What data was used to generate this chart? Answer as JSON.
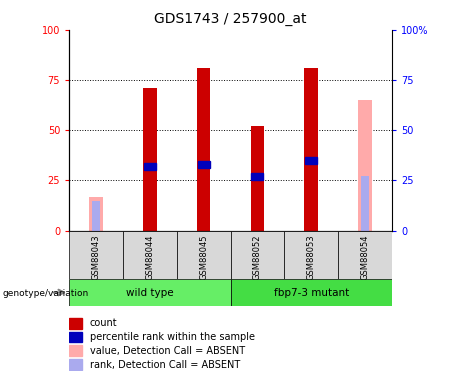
{
  "title": "GDS1743 / 257900_at",
  "samples": [
    "GSM88043",
    "GSM88044",
    "GSM88045",
    "GSM88052",
    "GSM88053",
    "GSM88054"
  ],
  "absent": [
    true,
    false,
    false,
    false,
    false,
    true
  ],
  "count_values": [
    0,
    71,
    81,
    52,
    81,
    0
  ],
  "percentile_values": [
    0,
    32,
    33,
    27,
    35,
    0
  ],
  "value_absent": [
    17,
    0,
    0,
    0,
    0,
    65
  ],
  "rank_absent": [
    15,
    0,
    0,
    0,
    0,
    27
  ],
  "bar_color_red": "#cc0000",
  "bar_color_blue": "#0000bb",
  "bar_color_pink": "#ffaaaa",
  "bar_color_lightblue": "#aaaaee",
  "bg_color": "#d8d8d8",
  "ylim": [
    0,
    100
  ],
  "yticks": [
    0,
    25,
    50,
    75,
    100
  ],
  "title_fontsize": 10,
  "bar_width": 0.25,
  "legend_items": [
    {
      "label": "count",
      "color": "#cc0000"
    },
    {
      "label": "percentile rank within the sample",
      "color": "#0000bb"
    },
    {
      "label": "value, Detection Call = ABSENT",
      "color": "#ffaaaa"
    },
    {
      "label": "rank, Detection Call = ABSENT",
      "color": "#aaaaee"
    }
  ]
}
